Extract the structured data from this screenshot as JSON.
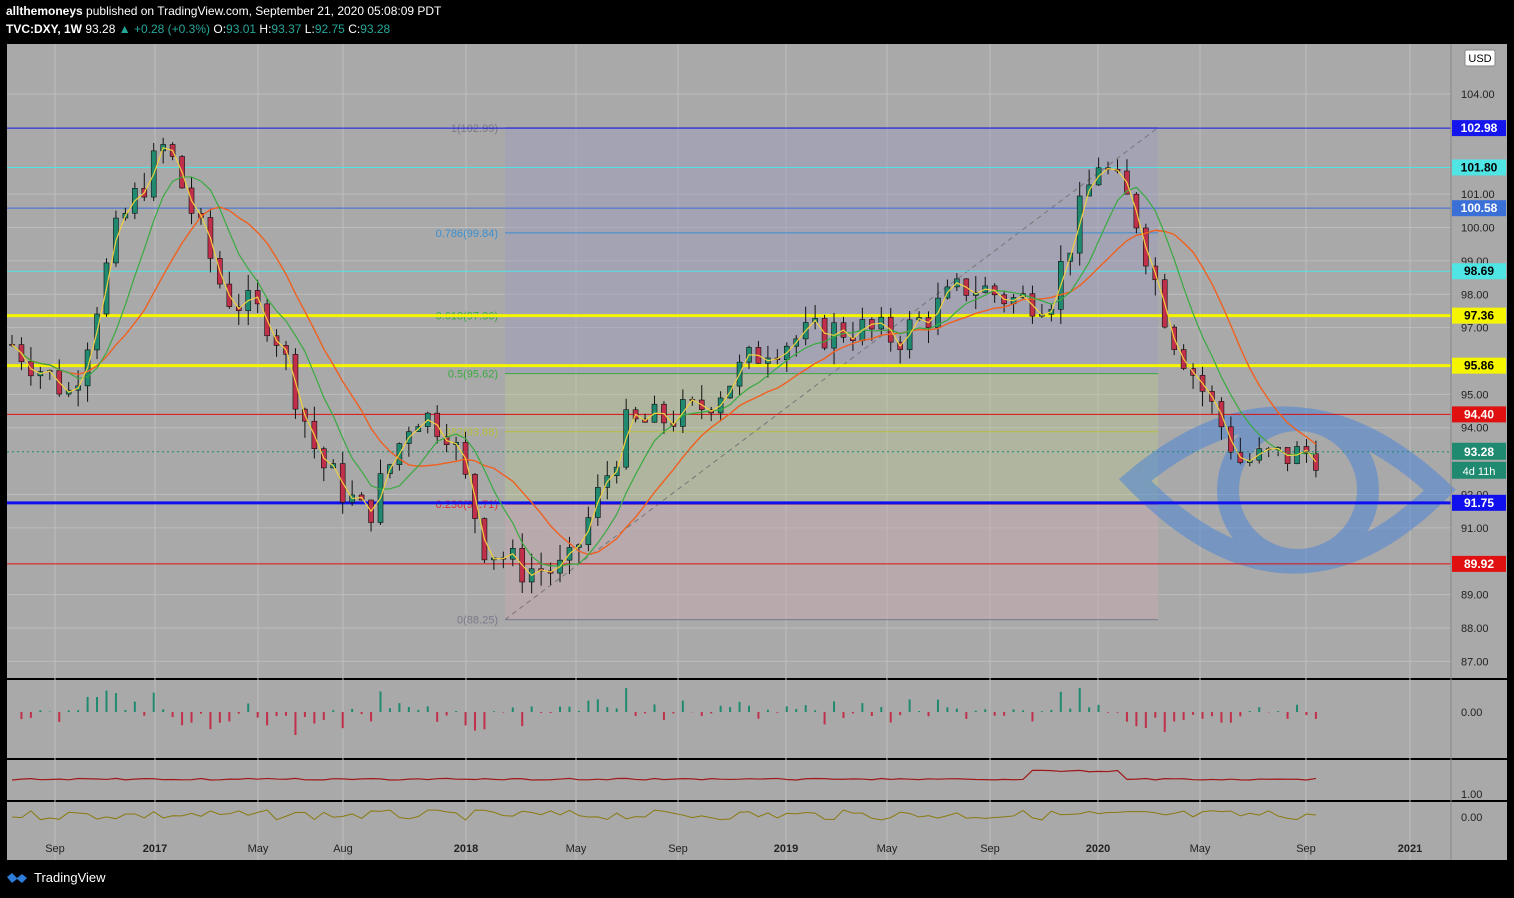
{
  "header": {
    "author": "allthemoneys",
    "published_text": "published on TradingView.com, September 21, 2020 05:08:09 PDT",
    "symbol": "TVC:DXY, 1W",
    "last": "93.28",
    "change": "+0.28 (+0.3%)",
    "o_label": "O:",
    "o_value": "93.01",
    "h_label": "H:",
    "h_value": "93.37",
    "l_label": "L:",
    "l_value": "92.75",
    "c_label": "C:",
    "c_value": "93.28"
  },
  "footer": {
    "brand": "TradingView"
  },
  "colors": {
    "background": "#a9a9a9",
    "up": "#1f8a70",
    "down": "#c0304a",
    "ma_fast": "#f0d040",
    "ma_mid": "#3aaa40",
    "ma_slow": "#f06020"
  },
  "chart_data": {
    "type": "candlestick",
    "timeframe": "1W",
    "currency": "USD",
    "ylim": [
      86.5,
      105.5
    ],
    "y_ticks": [
      "104.00",
      "101.00",
      "100.00",
      "99.00",
      "98.00",
      "97.00",
      "95.00",
      "94.00",
      "92.00",
      "91.00",
      "89.00",
      "88.00",
      "87.00"
    ],
    "x_ticks": [
      "Sep",
      "2017",
      "May",
      "Aug",
      "2018",
      "May",
      "Sep",
      "2019",
      "May",
      "Sep",
      "2020",
      "May",
      "Sep",
      "2021"
    ],
    "last_price": 93.28,
    "countdown": "4d 11h",
    "horizontal_levels": [
      {
        "value": 102.98,
        "label": "102.98",
        "color": "#1515ee"
      },
      {
        "value": 101.8,
        "label": "101.80",
        "color": "#4fe5e5"
      },
      {
        "value": 100.58,
        "label": "100.58",
        "color": "#3a6fd8"
      },
      {
        "value": 98.69,
        "label": "98.69",
        "color": "#4fe5e5"
      },
      {
        "value": 97.36,
        "label": "97.36",
        "color": "#f5f500"
      },
      {
        "value": 95.86,
        "label": "95.86",
        "color": "#f5f500"
      },
      {
        "value": 94.4,
        "label": "94.40",
        "color": "#e01010"
      },
      {
        "value": 91.75,
        "label": "91.75",
        "color": "#1010ee"
      },
      {
        "value": 89.92,
        "label": "89.92",
        "color": "#e01010"
      }
    ],
    "fibonacci": [
      {
        "label": "1(102.99)",
        "value": 102.99,
        "color": "#7a7a8a"
      },
      {
        "label": "0.786(99.84)",
        "value": 99.84,
        "color": "#3a8fd0"
      },
      {
        "label": "0.618(97.36)",
        "value": 97.36,
        "color": "#3aaa40"
      },
      {
        "label": "0.5(95.62)",
        "value": 95.62,
        "color": "#3aaa40"
      },
      {
        "label": "0.382(93.88)",
        "value": 93.88,
        "color": "#b8c040"
      },
      {
        "label": "0.236(91.71)",
        "value": 91.71,
        "color": "#e03030"
      },
      {
        "label": "0(88.25)",
        "value": 88.25,
        "color": "#7a7a8a"
      }
    ],
    "oscillators": [
      {
        "name": "histogram",
        "tick": "0.00"
      },
      {
        "name": "line",
        "tick": "1.00"
      },
      {
        "name": "line2",
        "tick": "0.00"
      }
    ]
  }
}
